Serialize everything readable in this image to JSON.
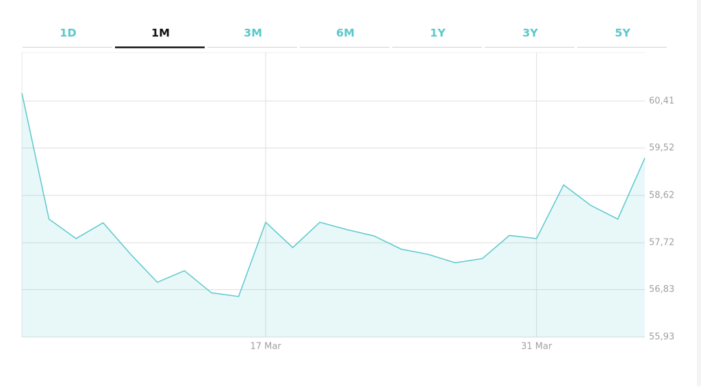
{
  "tabs": {
    "labels": [
      "1D",
      "1M",
      "3M",
      "6M",
      "1Y",
      "3Y",
      "5Y"
    ],
    "active": 1
  },
  "chart_data": {
    "type": "line",
    "categories": [
      null,
      null,
      null,
      null,
      null,
      null,
      null,
      null,
      null,
      "17 Mar",
      null,
      null,
      null,
      null,
      null,
      null,
      null,
      null,
      null,
      "31 Mar",
      null,
      null,
      null,
      null
    ],
    "series": [
      {
        "name": null,
        "color": "#5bc8cc",
        "values": [
          60.56,
          58.17,
          57.8,
          58.1,
          57.51,
          56.97,
          57.19,
          56.77,
          56.7,
          58.11,
          57.63,
          58.11,
          57.97,
          57.85,
          57.6,
          57.5,
          57.34,
          57.42,
          57.86,
          57.8,
          58.82,
          58.43,
          58.17,
          59.33
        ]
      }
    ],
    "ylim": [
      55.93,
      61.33
    ],
    "yticks": [
      {
        "value": 55.93,
        "label": "55,93"
      },
      {
        "value": 56.83,
        "label": "56,83"
      },
      {
        "value": 57.72,
        "label": "57,72"
      },
      {
        "value": 58.62,
        "label": "58,62"
      },
      {
        "value": 59.52,
        "label": "59,52"
      },
      {
        "value": 60.41,
        "label": "60,41"
      }
    ],
    "grid": true,
    "area": true
  }
}
